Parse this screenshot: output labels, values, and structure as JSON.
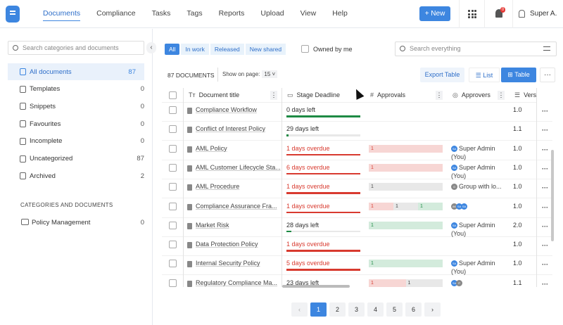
{
  "header": {
    "nav": [
      "Documents",
      "Compliance",
      "Tasks",
      "Tags",
      "Reports",
      "Upload",
      "View",
      "Help"
    ],
    "active_nav": "Documents",
    "new_label": "+ New",
    "notifications": "0",
    "user": "Super A."
  },
  "sidebar": {
    "search_placeholder": "Search categories and documents",
    "items": [
      {
        "label": "All documents",
        "count": "87",
        "icon": "document-icon"
      },
      {
        "label": "Templates",
        "count": "0",
        "icon": "template-icon"
      },
      {
        "label": "Snippets",
        "count": "0",
        "icon": "snippet-icon"
      },
      {
        "label": "Favourites",
        "count": "0",
        "icon": "star-icon"
      },
      {
        "label": "Incomplete",
        "count": "0",
        "icon": "clock-icon"
      },
      {
        "label": "Uncategorized",
        "count": "87",
        "icon": "folder-icon"
      },
      {
        "label": "Archived",
        "count": "2",
        "icon": "archive-icon"
      }
    ],
    "section_heading": "CATEGORIES AND DOCUMENTS",
    "categories": [
      {
        "label": "Policy Management",
        "count": "0"
      }
    ]
  },
  "filters": {
    "tabs": [
      "All",
      "In work",
      "Released",
      "New shared"
    ],
    "active": "All",
    "owned_by_me": "Owned by me",
    "search_placeholder": "Search everything"
  },
  "toolbar": {
    "doc_count": "87 DOCUMENTS",
    "show_on_page_label": "Show on page:",
    "show_on_page_value": "15 ˅",
    "export": "Export Table",
    "list": "List",
    "table": "Table",
    "more": "···"
  },
  "table": {
    "columns": [
      "Document title",
      "Stage Deadline",
      "Approvals",
      "Approvers",
      "Vers"
    ],
    "rows": [
      {
        "title": "Compliance Workflow",
        "deadline": "0 days left",
        "status": "ok",
        "progress": 100,
        "approvals": [],
        "approvers": "",
        "avatars": [],
        "version": "1.0"
      },
      {
        "title": "Conflict of Interest Policy",
        "deadline": "29 days left",
        "status": "ok",
        "progress": 3,
        "approvals": [],
        "approvers": "",
        "avatars": [],
        "version": "1.1"
      },
      {
        "title": "AML Policy",
        "deadline": "1 days overdue",
        "status": "overdue",
        "progress": 100,
        "approvals": [
          {
            "v": "1",
            "c": "red"
          }
        ],
        "approvers": "Super Admin (You)",
        "avatars": [
          "SA"
        ],
        "version": "1.0"
      },
      {
        "title": "AML Customer Lifecycle Sta...",
        "deadline": "6 days overdue",
        "status": "overdue",
        "progress": 100,
        "approvals": [
          {
            "v": "1",
            "c": "red"
          }
        ],
        "approvers": "Super Admin (You)",
        "avatars": [
          "SA"
        ],
        "version": "1.0"
      },
      {
        "title": "AML Procedure",
        "deadline": "1 days overdue",
        "status": "overdue",
        "progress": 100,
        "approvals": [
          {
            "v": "1",
            "c": "grey"
          }
        ],
        "approvers": "Group with lo...",
        "avatars": [
          "G"
        ],
        "version": "1.0"
      },
      {
        "title": "Compliance Assurance Fra...",
        "deadline": "1 days overdue",
        "status": "overdue",
        "progress": 100,
        "approvals": [
          {
            "v": "1",
            "c": "red"
          },
          {
            "v": "1",
            "c": "grey"
          },
          {
            "v": "1",
            "c": "green"
          }
        ],
        "approvers": "",
        "avatars": [
          "AK",
          "SA",
          "SA"
        ],
        "version": "1.0"
      },
      {
        "title": "Market Risk",
        "deadline": "28 days left",
        "status": "ok",
        "progress": 7,
        "approvals": [
          {
            "v": "1",
            "c": "green"
          }
        ],
        "approvers": "Super Admin (You)",
        "avatars": [
          "SA"
        ],
        "version": "2.0"
      },
      {
        "title": "Data Protection Policy",
        "deadline": "1 days overdue",
        "status": "overdue",
        "progress": 100,
        "approvals": [],
        "approvers": "",
        "avatars": [],
        "version": "1.0"
      },
      {
        "title": "Internal Security Policy",
        "deadline": "5 days overdue",
        "status": "overdue",
        "progress": 100,
        "approvals": [
          {
            "v": "1",
            "c": "green"
          }
        ],
        "approvers": "Super Admin (You)",
        "avatars": [
          "SA"
        ],
        "version": "1.0"
      },
      {
        "title": "Regulatory Compliance Ma...",
        "deadline": "23 days left",
        "status": "ok",
        "progress": 20,
        "approvals": [
          {
            "v": "1",
            "c": "red"
          },
          {
            "v": "1",
            "c": "grey"
          }
        ],
        "approvers": "",
        "avatars": [
          "SA",
          "IT"
        ],
        "version": "1.1"
      }
    ],
    "row_action": "···"
  },
  "pagination": {
    "prev": "‹",
    "pages": [
      "1",
      "2",
      "3",
      "4",
      "5",
      "6"
    ],
    "current": "1",
    "next": "›"
  },
  "colors": {
    "accent": "#3d86e0",
    "overdue": "#d83a2f",
    "ok": "#1e8a44",
    "red_bg": "#f7d6d4",
    "green_bg": "#d3ebdc",
    "grey_bg": "#e8e8e8"
  }
}
